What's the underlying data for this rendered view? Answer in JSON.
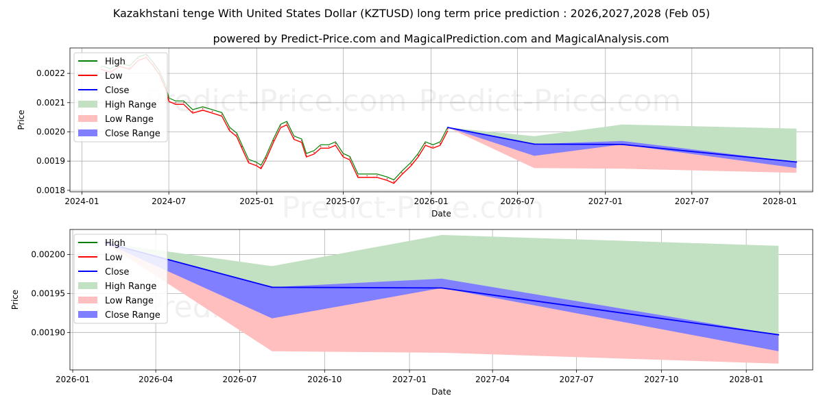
{
  "title": "Kazakhstani tenge With United States Dollar (KZTUSD) long term price prediction : 2026,2027,2028 (Feb 05)",
  "subtitle": "powered by Predict-Price.com and MagicalPrediction.com and MagicalAnalysis.com",
  "watermark": "Predict-Price.com",
  "colors": {
    "high": "#008000",
    "low": "#ff0000",
    "close": "#0000ff",
    "high_range": "#c2e0c2",
    "low_range": "#ffbfbf",
    "close_range": "#7f7fff",
    "grid": "#b0b0b0"
  },
  "legend": [
    "High",
    "Low",
    "Close",
    "High Range",
    "Low Range",
    "Close Range"
  ],
  "chart_data": [
    {
      "type": "line",
      "name": "long-term",
      "xlabel": "Date",
      "ylabel": "Price",
      "xlim": [
        "2023-12-07",
        "2028-03-10"
      ],
      "ylim": [
        0.001795,
        0.002287
      ],
      "x_ticks": [
        "2024-01-01",
        "2024-07-01",
        "2025-01-01",
        "2025-07-01",
        "2026-01-01",
        "2026-07-01",
        "2027-01-01",
        "2027-07-01",
        "2028-01-01"
      ],
      "x_tick_labels": [
        "2024-01",
        "2024-07",
        "2025-01",
        "2025-07",
        "2026-01",
        "2026-07",
        "2027-01",
        "2027-07",
        "2028-01"
      ],
      "y_ticks": [
        0.0018,
        0.0019,
        0.002,
        0.0021,
        0.0022
      ],
      "y_tick_labels": [
        "0.0018",
        "0.0019",
        "0.0020",
        "0.0021",
        "0.0022"
      ],
      "history": {
        "dates": [
          "2024-02-10",
          "2024-03-01",
          "2024-03-20",
          "2024-04-10",
          "2024-04-28",
          "2024-05-15",
          "2024-05-30",
          "2024-06-12",
          "2024-06-25",
          "2024-07-01",
          "2024-07-15",
          "2024-08-01",
          "2024-08-20",
          "2024-09-10",
          "2024-09-30",
          "2024-10-20",
          "2024-11-05",
          "2024-11-20",
          "2024-12-01",
          "2024-12-15",
          "2025-01-01",
          "2025-01-10",
          "2025-01-20",
          "2025-02-05",
          "2025-02-20",
          "2025-03-05",
          "2025-03-20",
          "2025-04-05",
          "2025-04-15",
          "2025-05-01",
          "2025-05-15",
          "2025-06-01",
          "2025-06-15",
          "2025-07-01",
          "2025-07-15",
          "2025-08-01",
          "2025-08-20",
          "2025-09-10",
          "2025-10-01",
          "2025-10-15",
          "2025-11-01",
          "2025-11-20",
          "2025-12-05",
          "2025-12-20",
          "2026-01-05",
          "2026-01-20",
          "2026-02-05"
        ],
        "close": [
          0.00222,
          0.00221,
          0.00223,
          0.00222,
          0.00225,
          0.00226,
          0.00223,
          0.0022,
          0.00215,
          0.00211,
          0.0021,
          0.0021,
          0.00207,
          0.00208,
          0.00207,
          0.00206,
          0.00201,
          0.00199,
          0.00195,
          0.0019,
          0.00189,
          0.00188,
          0.00191,
          0.00197,
          0.00202,
          0.00203,
          0.00198,
          0.00197,
          0.00192,
          0.00193,
          0.00195,
          0.00195,
          0.00196,
          0.00192,
          0.00191,
          0.00185,
          0.00185,
          0.00185,
          0.00184,
          0.00183,
          0.00186,
          0.00189,
          0.00192,
          0.00196,
          0.00195,
          0.00196,
          0.00201
        ]
      },
      "forecast": {
        "dates": [
          "2026-02-05",
          "2026-08-05",
          "2027-02-05",
          "2028-02-05"
        ],
        "close": [
          0.002015,
          0.001958,
          0.001957,
          0.001897
        ],
        "high_range_upper": [
          0.002015,
          0.001985,
          0.002025,
          0.002011
        ],
        "high_range_lower": [
          0.002015,
          0.001958,
          0.001957,
          0.001897
        ],
        "low_range_upper": [
          0.002015,
          0.001958,
          0.001957,
          0.001897
        ],
        "low_range_lower": [
          0.002015,
          0.001876,
          0.001874,
          0.00186
        ],
        "close_range_upper": [
          0.002015,
          0.001958,
          0.001969,
          0.001897
        ],
        "close_range_lower": [
          0.002015,
          0.001918,
          0.001957,
          0.001876
        ]
      }
    },
    {
      "type": "line",
      "name": "forecast-zoom",
      "xlabel": "Date",
      "ylabel": "Price",
      "xlim": [
        "2025-12-29",
        "2028-03-13"
      ],
      "ylim": [
        0.001852,
        0.002032
      ],
      "x_ticks": [
        "2026-01-01",
        "2026-04-01",
        "2026-07-01",
        "2026-10-01",
        "2027-01-01",
        "2027-04-01",
        "2027-07-01",
        "2027-10-01",
        "2028-01-01"
      ],
      "x_tick_labels": [
        "2026-01",
        "2026-04",
        "2026-07",
        "2026-10",
        "2027-01",
        "2027-04",
        "2027-07",
        "2027-10",
        "2028-01"
      ],
      "y_ticks": [
        0.0019,
        0.00195,
        0.002
      ],
      "y_tick_labels": [
        "0.00190",
        "0.00195",
        "0.00200"
      ],
      "forecast": {
        "dates": [
          "2026-02-05",
          "2026-08-05",
          "2027-02-05",
          "2028-02-05"
        ],
        "close": [
          0.002015,
          0.001958,
          0.001957,
          0.001897
        ],
        "high_range_upper": [
          0.002015,
          0.001985,
          0.002025,
          0.002011
        ],
        "high_range_lower": [
          0.002015,
          0.001958,
          0.001957,
          0.001897
        ],
        "low_range_upper": [
          0.002015,
          0.001958,
          0.001957,
          0.001897
        ],
        "low_range_lower": [
          0.002015,
          0.001876,
          0.001874,
          0.00186
        ],
        "close_range_upper": [
          0.002015,
          0.001958,
          0.001969,
          0.001897
        ],
        "close_range_lower": [
          0.002015,
          0.001918,
          0.001957,
          0.001876
        ]
      }
    }
  ]
}
